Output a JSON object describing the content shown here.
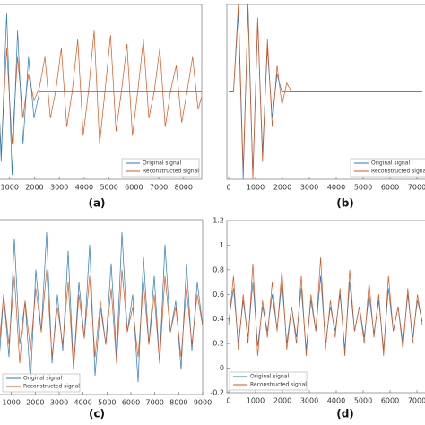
{
  "chart_data": [
    {
      "type": "line",
      "caption": "(a)",
      "legend": "lower right",
      "x": [
        0,
        220,
        440,
        660,
        880,
        1100,
        1320,
        1540,
        1760,
        1980,
        2200,
        2420,
        2640,
        2860,
        3080,
        3300,
        3520,
        3740,
        3960,
        4180,
        4400,
        4620,
        4840,
        5060,
        5280,
        5500,
        5720,
        5940,
        6160,
        6380,
        6600,
        6820,
        7040,
        7260,
        7480,
        7700,
        7920,
        8140,
        8360,
        8580,
        8800
      ],
      "xlim": [
        0,
        8800
      ],
      "ylim": [
        -1,
        1
      ],
      "xticks": [
        1000,
        2000,
        3000,
        4000,
        5000,
        6000,
        7000,
        8000
      ],
      "series": [
        {
          "name": "Original signal",
          "color": "#2a7ab8",
          "values": [
            0.6,
            -0.9,
            0.95,
            -0.8,
            0.9,
            -0.95,
            0.7,
            -0.6,
            0.4,
            -0.3,
            0,
            0,
            0,
            0,
            0,
            0,
            0,
            0,
            0,
            0,
            0,
            0,
            0,
            0,
            0,
            0,
            0,
            0,
            0,
            0,
            0,
            0,
            0,
            0,
            0,
            0,
            0,
            0,
            0,
            0,
            0
          ]
        },
        {
          "name": "Reconstructed signal",
          "color": "#d95319",
          "values": [
            0.3,
            -0.5,
            0.6,
            -0.7,
            0.5,
            -0.6,
            0.4,
            -0.3,
            0.2,
            -0.1,
            0.05,
            0.4,
            -0.3,
            0.02,
            0.5,
            -0.4,
            0.01,
            0.6,
            -0.5,
            0.03,
            0.7,
            -0.6,
            0.02,
            0.65,
            -0.45,
            0.01,
            0.55,
            -0.5,
            0.02,
            0.6,
            -0.3,
            0.01,
            0.5,
            -0.4,
            0.02,
            0.3,
            -0.35,
            0.01,
            0.4,
            -0.2,
            0.02
          ]
        }
      ]
    },
    {
      "type": "line",
      "caption": "(b)",
      "legend": "lower right",
      "x": [
        0,
        180,
        360,
        540,
        720,
        900,
        1080,
        1260,
        1440,
        1620,
        1800,
        1980,
        2160,
        2340,
        2520,
        2700,
        2880,
        3060,
        3240,
        3420,
        3600,
        3780,
        3960,
        4140,
        4320,
        4500,
        4680,
        4860,
        5040,
        5220,
        5400,
        5580,
        5760,
        5940,
        6120,
        6300,
        6480,
        6660,
        6840,
        7020,
        7200
      ],
      "xlim": [
        0,
        7300
      ],
      "ylim": [
        -1,
        1
      ],
      "xticks": [
        0,
        1000,
        2000,
        3000,
        4000,
        5000,
        6000,
        7000
      ],
      "series": [
        {
          "name": "Original signal",
          "color": "#2a7ab8",
          "values": [
            0,
            0,
            0.9,
            -1,
            1,
            -0.95,
            0.8,
            -0.7,
            0.5,
            -0.3,
            0.2,
            0,
            0,
            0,
            0,
            0,
            0,
            0,
            0,
            0,
            0,
            0,
            0,
            0,
            0,
            0,
            0,
            0,
            0,
            0,
            0,
            0,
            0,
            0,
            0,
            0,
            0,
            0,
            0,
            0,
            0
          ]
        },
        {
          "name": "Reconstructed signal",
          "color": "#d95319",
          "values": [
            0,
            0,
            1,
            -0.9,
            0.95,
            -1,
            0.85,
            -0.8,
            0.6,
            -0.4,
            0.3,
            -0.15,
            0.1,
            0,
            0,
            0,
            0,
            0,
            0,
            0,
            0,
            0,
            0,
            0,
            0,
            0,
            0,
            0,
            0,
            0,
            0,
            0,
            0,
            0,
            0,
            0,
            0,
            0,
            0,
            0,
            0
          ]
        }
      ]
    },
    {
      "type": "line",
      "caption": "(c)",
      "legend": "lower left",
      "x": [
        0,
        225,
        450,
        675,
        900,
        1125,
        1350,
        1575,
        1800,
        2025,
        2250,
        2475,
        2700,
        2925,
        3150,
        3375,
        3600,
        3825,
        4050,
        4275,
        4500,
        4725,
        4950,
        5175,
        5400,
        5625,
        5850,
        6075,
        6300,
        6525,
        6750,
        6975,
        7200,
        7425,
        7650,
        7875,
        8100,
        8325,
        8550,
        8775,
        9000
      ],
      "xlim": [
        0,
        9000
      ],
      "ylim": [
        -0.2,
        1.2
      ],
      "xticks": [
        1000,
        2000,
        3000,
        4000,
        5000,
        6000,
        7000,
        8000,
        9000
      ],
      "series": [
        {
          "name": "Original signal",
          "color": "#2a7ab8",
          "values": [
            0.35,
            0.9,
            -0.05,
            0.6,
            0.1,
            1.05,
            0.2,
            0.55,
            -0.1,
            0.8,
            0.3,
            1.1,
            0.05,
            0.6,
            0.15,
            0.95,
            0.0,
            0.7,
            0.25,
            1.0,
            -0.05,
            0.5,
            0.2,
            0.85,
            0.1,
            1.1,
            0.3,
            0.6,
            -0.1,
            0.9,
            0.2,
            0.75,
            0.05,
            1.0,
            0.3,
            0.55,
            0.0,
            0.85,
            0.15,
            0.7,
            0.35
          ]
        },
        {
          "name": "Reconstructed signal",
          "color": "#d95319",
          "values": [
            0.4,
            0.7,
            0.1,
            0.6,
            0.2,
            0.75,
            0.05,
            0.55,
            0.15,
            0.65,
            0.3,
            0.8,
            0.1,
            0.5,
            0.2,
            0.7,
            0.0,
            0.6,
            0.25,
            0.75,
            0.1,
            0.55,
            0.2,
            0.65,
            0.05,
            0.8,
            0.3,
            0.5,
            0.1,
            0.7,
            0.2,
            0.6,
            0.05,
            0.75,
            0.3,
            0.5,
            0.1,
            0.65,
            0.2,
            0.6,
            0.35
          ]
        }
      ]
    },
    {
      "type": "line",
      "caption": "(d)",
      "legend": "lower left",
      "x": [
        0,
        180,
        360,
        540,
        720,
        900,
        1080,
        1260,
        1440,
        1620,
        1800,
        1980,
        2160,
        2340,
        2520,
        2700,
        2880,
        3060,
        3240,
        3420,
        3600,
        3780,
        3960,
        4140,
        4320,
        4500,
        4680,
        4860,
        5040,
        5220,
        5400,
        5580,
        5760,
        5940,
        6120,
        6300,
        6480,
        6660,
        6840,
        7020,
        7200
      ],
      "xlim": [
        0,
        7300
      ],
      "ylim": [
        -0.2,
        1.2
      ],
      "xticks": [
        0,
        1000,
        2000,
        3000,
        4000,
        5000,
        6000,
        7000
      ],
      "yticks": [
        -0.2,
        0,
        0.2,
        0.4,
        0.6,
        0.8,
        1,
        1.2
      ],
      "series": [
        {
          "name": "Original signal",
          "color": "#2a7ab8",
          "values": [
            0.38,
            0.65,
            0.2,
            0.55,
            0.25,
            0.7,
            0.18,
            0.5,
            0.3,
            0.6,
            0.32,
            0.7,
            0.2,
            0.5,
            0.25,
            0.65,
            0.15,
            0.55,
            0.3,
            0.75,
            0.2,
            0.5,
            0.3,
            0.6,
            0.15,
            0.7,
            0.3,
            0.5,
            0.25,
            0.6,
            0.28,
            0.55,
            0.15,
            0.65,
            0.3,
            0.5,
            0.2,
            0.6,
            0.25,
            0.55,
            0.38
          ]
        },
        {
          "name": "Reconstructed signal",
          "color": "#d95319",
          "values": [
            0.35,
            0.75,
            0.15,
            0.6,
            0.2,
            0.85,
            0.1,
            0.55,
            0.25,
            0.7,
            0.3,
            0.8,
            0.15,
            0.5,
            0.2,
            0.75,
            0.1,
            0.6,
            0.3,
            0.9,
            0.15,
            0.55,
            0.25,
            0.65,
            0.1,
            0.8,
            0.3,
            0.5,
            0.2,
            0.7,
            0.25,
            0.6,
            0.1,
            0.75,
            0.3,
            0.5,
            0.15,
            0.65,
            0.2,
            0.6,
            0.35
          ]
        }
      ]
    }
  ]
}
